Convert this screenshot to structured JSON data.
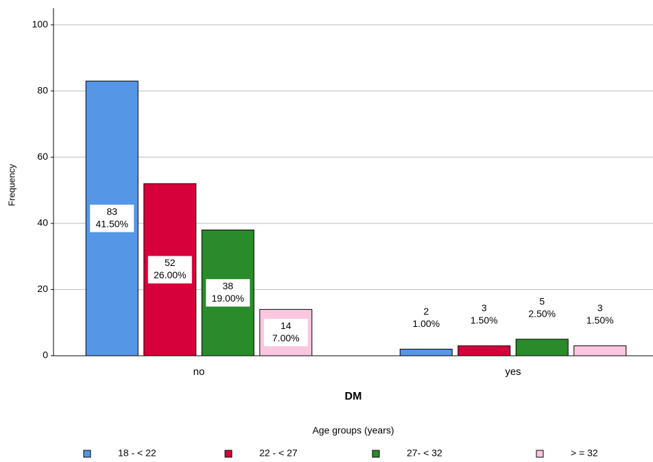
{
  "chart_data": {
    "type": "bar",
    "xlabel": "DM",
    "ylabel": "Frequency",
    "legend_title": "Age groups (years)",
    "categories": [
      "no",
      "yes"
    ],
    "series": [
      {
        "name": "18 - < 22",
        "color": "#5596e6",
        "values": [
          83,
          2
        ],
        "percent_labels": [
          "41.50%",
          "1.00%"
        ]
      },
      {
        "name": "22 - < 27",
        "color": "#d6003a",
        "values": [
          52,
          3
        ],
        "percent_labels": [
          "26.00%",
          "1.50%"
        ]
      },
      {
        "name": "27- < 32",
        "color": "#2a8b2a",
        "values": [
          38,
          5
        ],
        "percent_labels": [
          "19.00%",
          "2.50%"
        ]
      },
      {
        "name": "> = 32",
        "color": "#fbc6e0",
        "values": [
          14,
          3
        ],
        "percent_labels": [
          "7.00%",
          "1.50%"
        ]
      }
    ],
    "ylim": [
      0,
      105
    ],
    "yticks": [
      0,
      20,
      40,
      60,
      80,
      100
    ],
    "grid": true,
    "legend": "bottom"
  }
}
